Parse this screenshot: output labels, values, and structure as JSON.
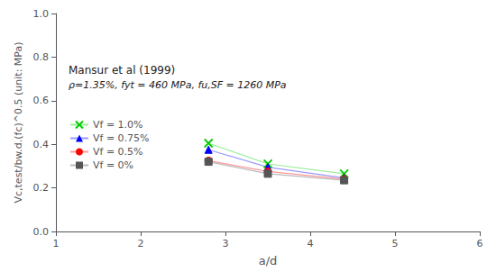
{
  "chart_data": {
    "type": "line",
    "xlabel": "a/d",
    "ylabel": "Vc,test/bw.d.(fc)^0.5 (unit: MPa)",
    "annotations": [
      "Mansur et al (1999)",
      "ρ=1.35%, fyt = 460 MPa, fu,SF = 1260 MPa"
    ],
    "xlim": [
      1,
      6
    ],
    "ylim": [
      0,
      1
    ],
    "xticks": [
      1,
      2,
      3,
      4,
      5,
      6
    ],
    "yticks": [
      {
        "value": 0,
        "label": "0.0"
      },
      0.2,
      0.4,
      0.6,
      0.8,
      {
        "value": 1.0,
        "label": "1.0"
      }
    ],
    "grid": false,
    "legend": "left",
    "series": [
      {
        "name": "Vf = 1.0%",
        "x": [
          2.8,
          3.5,
          4.4
        ],
        "values": [
          0.405,
          0.31,
          0.265
        ],
        "color": "#00cc00",
        "marker": "x"
      },
      {
        "name": "Vf = 0.75%",
        "x": [
          2.8,
          3.5,
          4.4
        ],
        "values": [
          0.375,
          0.295,
          0.245
        ],
        "color": "#0000ff",
        "marker": "triangle"
      },
      {
        "name": "Vf = 0.5%",
        "x": [
          2.8,
          3.5,
          4.4
        ],
        "values": [
          0.325,
          0.275,
          0.24
        ],
        "color": "#ff0000",
        "marker": "circle"
      },
      {
        "name": "Vf = 0%",
        "x": [
          2.8,
          3.5,
          4.4
        ],
        "values": [
          0.32,
          0.265,
          0.235
        ],
        "color": "#555555",
        "marker": "square"
      }
    ]
  }
}
